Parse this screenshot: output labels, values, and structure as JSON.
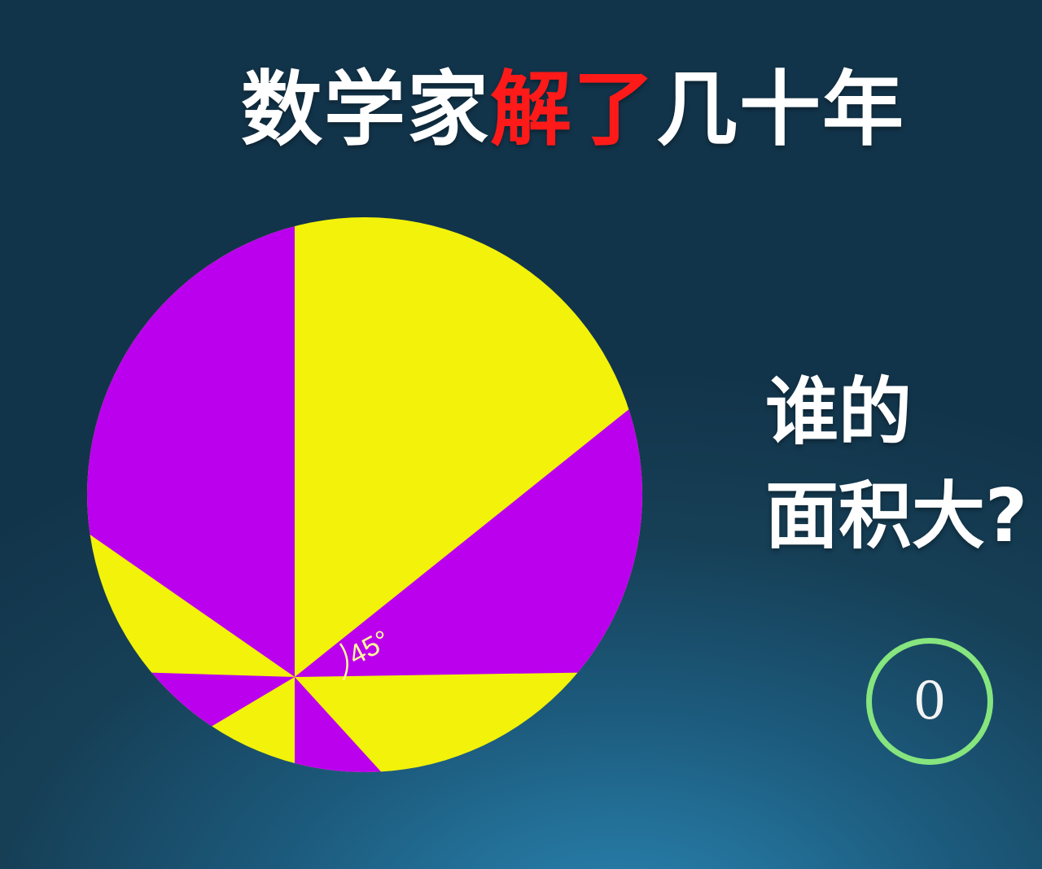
{
  "title": {
    "part1": "数学家",
    "part2_highlight": "解了",
    "part3": "几十年"
  },
  "question": {
    "line1": "谁的",
    "line2": "面积大?"
  },
  "angle_label": "45°",
  "timer_value": "0",
  "colors": {
    "yellow": "#f2f20a",
    "purple": "#bb00ee",
    "title_red": "#ff1a1a",
    "timer_ring": "#86e57e"
  }
}
